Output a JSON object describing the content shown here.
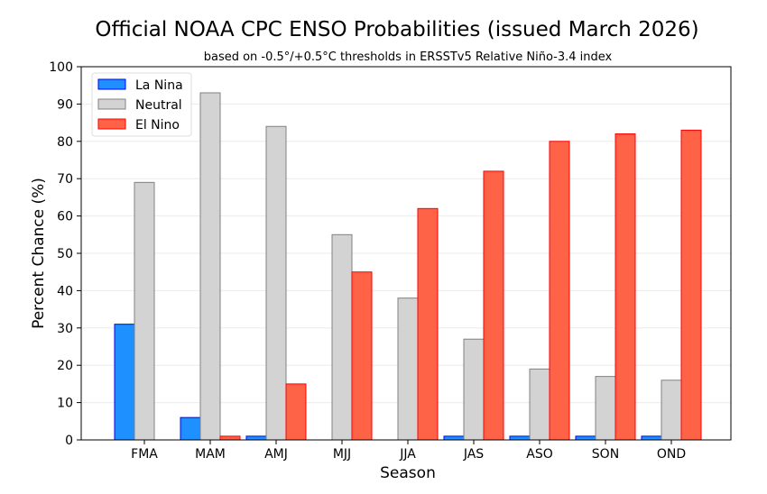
{
  "chart_data": {
    "type": "bar",
    "title": "Official NOAA CPC ENSO Probabilities (issued March 2026)",
    "subtitle": "based on -0.5°/+0.5°C thresholds in ERSSTv5 Relative Niño-3.4 index",
    "xlabel": "Season",
    "ylabel": "Percent Chance (%)",
    "ylim": [
      0,
      100
    ],
    "yticks": [
      "0",
      "10",
      "20",
      "30",
      "40",
      "50",
      "60",
      "70",
      "80",
      "90",
      "100"
    ],
    "grid": true,
    "legend_position": "top-left",
    "categories": [
      "FMA",
      "MAM",
      "AMJ",
      "MJJ",
      "JJA",
      "JAS",
      "ASO",
      "SON",
      "OND"
    ],
    "series": [
      {
        "name": "La Nina",
        "color": "#1e90ff",
        "edge": "#0000ff",
        "values": [
          31,
          6,
          1,
          0,
          0,
          1,
          1,
          1,
          1
        ]
      },
      {
        "name": "Neutral",
        "color": "#d3d3d3",
        "edge": "#808080",
        "values": [
          69,
          93,
          84,
          55,
          38,
          27,
          19,
          17,
          16
        ]
      },
      {
        "name": "El Nino",
        "color": "#ff6347",
        "edge": "#ff0000",
        "values": [
          0,
          1,
          15,
          45,
          62,
          72,
          80,
          82,
          83
        ]
      }
    ]
  }
}
